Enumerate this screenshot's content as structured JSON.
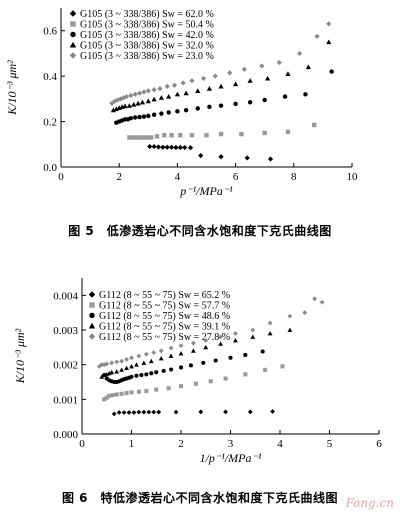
{
  "figures": [
    {
      "caption": "图 5　低渗透岩心不同含水饱和度下克氏曲线图",
      "chart_data": {
        "type": "scatter",
        "xlabel": "p⁻¹/MPa⁻¹",
        "ylabel": "K/10⁻³ μm²",
        "xlim": [
          0,
          10
        ],
        "ylim": [
          0,
          0.7
        ],
        "x_ticks": [
          "0",
          "2",
          "4",
          "6",
          "8",
          "10"
        ],
        "y_ticks": [
          "0.0",
          "0.2",
          "0.4",
          "0.6"
        ],
        "legend_position": "top-left",
        "series": [
          {
            "label": "G105 (3 ~ 338/386) Sw = 62.0 %",
            "marker": "diamond",
            "color": "#000000",
            "points": [
              [
                3.05,
                0.09
              ],
              [
                3.2,
                0.09
              ],
              [
                3.35,
                0.088
              ],
              [
                3.5,
                0.087
              ],
              [
                3.65,
                0.087
              ],
              [
                3.8,
                0.087
              ],
              [
                3.95,
                0.086
              ],
              [
                4.1,
                0.086
              ],
              [
                4.25,
                0.086
              ],
              [
                4.45,
                0.085
              ],
              [
                4.8,
                0.05
              ],
              [
                5.5,
                0.045
              ],
              [
                6.4,
                0.04
              ],
              [
                7.2,
                0.035
              ]
            ]
          },
          {
            "label": "G105 (3 ~ 338/386) Sw = 50.4 %",
            "marker": "square",
            "color": "#9a9a9a",
            "points": [
              [
                2.35,
                0.13
              ],
              [
                2.5,
                0.13
              ],
              [
                2.65,
                0.13
              ],
              [
                2.8,
                0.13
              ],
              [
                2.95,
                0.13
              ],
              [
                3.1,
                0.13
              ],
              [
                3.3,
                0.135
              ],
              [
                3.55,
                0.14
              ],
              [
                3.8,
                0.14
              ],
              [
                4.1,
                0.14
              ],
              [
                4.5,
                0.14
              ],
              [
                5.0,
                0.14
              ],
              [
                5.5,
                0.145
              ],
              [
                6.2,
                0.145
              ],
              [
                7.0,
                0.15
              ],
              [
                7.8,
                0.155
              ],
              [
                8.7,
                0.185
              ]
            ]
          },
          {
            "label": "G105 (3 ~ 338/386) Sw = 42.0 %",
            "marker": "circle",
            "color": "#000000",
            "points": [
              [
                1.9,
                0.195
              ],
              [
                2.0,
                0.2
              ],
              [
                2.1,
                0.205
              ],
              [
                2.2,
                0.21
              ],
              [
                2.3,
                0.21
              ],
              [
                2.4,
                0.215
              ],
              [
                2.55,
                0.218
              ],
              [
                2.7,
                0.22
              ],
              [
                2.85,
                0.222
              ],
              [
                3.0,
                0.225
              ],
              [
                3.2,
                0.23
              ],
              [
                3.45,
                0.235
              ],
              [
                3.7,
                0.24
              ],
              [
                4.0,
                0.245
              ],
              [
                4.3,
                0.25
              ],
              [
                4.7,
                0.258
              ],
              [
                5.1,
                0.265
              ],
              [
                5.5,
                0.27
              ],
              [
                6.0,
                0.278
              ],
              [
                6.5,
                0.285
              ],
              [
                7.0,
                0.295
              ],
              [
                7.7,
                0.31
              ],
              [
                8.4,
                0.32
              ],
              [
                9.3,
                0.42
              ]
            ]
          },
          {
            "label": "G105 (3 ~ 338/386) Sw = 32.0 %",
            "marker": "triangle",
            "color": "#000000",
            "points": [
              [
                1.8,
                0.25
              ],
              [
                1.9,
                0.255
              ],
              [
                2.0,
                0.26
              ],
              [
                2.1,
                0.265
              ],
              [
                2.2,
                0.268
              ],
              [
                2.35,
                0.27
              ],
              [
                2.5,
                0.275
              ],
              [
                2.65,
                0.28
              ],
              [
                2.8,
                0.285
              ],
              [
                3.0,
                0.29
              ],
              [
                3.2,
                0.298
              ],
              [
                3.45,
                0.305
              ],
              [
                3.7,
                0.31
              ],
              [
                4.0,
                0.32
              ],
              [
                4.3,
                0.325
              ],
              [
                4.7,
                0.335
              ],
              [
                5.1,
                0.345
              ],
              [
                5.5,
                0.355
              ],
              [
                6.0,
                0.365
              ],
              [
                6.5,
                0.38
              ],
              [
                7.1,
                0.39
              ],
              [
                7.8,
                0.41
              ],
              [
                8.5,
                0.44
              ],
              [
                9.2,
                0.55
              ]
            ]
          },
          {
            "label": "G105 (3 ~ 338/386) Sw = 23.0 %",
            "marker": "diamond",
            "color": "#8a8a8a",
            "points": [
              [
                1.75,
                0.28
              ],
              [
                1.85,
                0.29
              ],
              [
                1.95,
                0.295
              ],
              [
                2.05,
                0.3
              ],
              [
                2.15,
                0.305
              ],
              [
                2.25,
                0.31
              ],
              [
                2.4,
                0.315
              ],
              [
                2.55,
                0.32
              ],
              [
                2.7,
                0.325
              ],
              [
                2.85,
                0.33
              ],
              [
                3.0,
                0.335
              ],
              [
                3.2,
                0.34
              ],
              [
                3.4,
                0.345
              ],
              [
                3.65,
                0.355
              ],
              [
                3.9,
                0.36
              ],
              [
                4.2,
                0.37
              ],
              [
                4.5,
                0.38
              ],
              [
                4.9,
                0.39
              ],
              [
                5.3,
                0.4
              ],
              [
                5.8,
                0.415
              ],
              [
                6.3,
                0.43
              ],
              [
                6.9,
                0.445
              ],
              [
                7.5,
                0.46
              ],
              [
                8.2,
                0.5
              ],
              [
                8.8,
                0.575
              ],
              [
                9.2,
                0.63
              ]
            ]
          }
        ]
      }
    },
    {
      "caption": "图 6　特低渗透岩心不同含水饱和度下克氏曲线图",
      "chart_data": {
        "type": "scatter",
        "xlabel": "1/p⁻¹/MPa⁻¹",
        "ylabel": "K/10⁻³ μm²",
        "xlim": [
          0,
          6
        ],
        "ylim": [
          0,
          0.0045
        ],
        "x_ticks": [
          "0",
          "1",
          "2",
          "3",
          "4",
          "5",
          "6"
        ],
        "y_ticks": [
          "0.000",
          "0.001",
          "0.002",
          "0.003",
          "0.004"
        ],
        "legend_position": "top-left",
        "series": [
          {
            "label": "G112 (8 ~ 55 ~ 75) Sw = 65.2 %",
            "marker": "diamond",
            "color": "#000000",
            "points": [
              [
                0.65,
                0.00058
              ],
              [
                0.75,
                0.00062
              ],
              [
                0.85,
                0.00062
              ],
              [
                0.95,
                0.00062
              ],
              [
                1.05,
                0.00062
              ],
              [
                1.15,
                0.00063
              ],
              [
                1.25,
                0.00063
              ],
              [
                1.35,
                0.00063
              ],
              [
                1.45,
                0.00063
              ],
              [
                1.55,
                0.00063
              ],
              [
                1.9,
                0.00063
              ],
              [
                2.4,
                0.00064
              ],
              [
                2.9,
                0.00064
              ],
              [
                3.4,
                0.00064
              ],
              [
                3.85,
                0.00065
              ]
            ]
          },
          {
            "label": "G112 (8 ~ 55 ~ 75) Sw = 57.7 %",
            "marker": "square",
            "color": "#9a9a9a",
            "points": [
              [
                0.45,
                0.001
              ],
              [
                0.5,
                0.00105
              ],
              [
                0.55,
                0.0011
              ],
              [
                0.62,
                0.00112
              ],
              [
                0.7,
                0.00114
              ],
              [
                0.8,
                0.00116
              ],
              [
                0.9,
                0.00118
              ],
              [
                1.0,
                0.0012
              ],
              [
                1.15,
                0.00122
              ],
              [
                1.3,
                0.00124
              ],
              [
                1.5,
                0.00128
              ],
              [
                1.75,
                0.00132
              ],
              [
                2.0,
                0.00138
              ],
              [
                2.3,
                0.00145
              ],
              [
                2.6,
                0.00152
              ],
              [
                2.9,
                0.0016
              ],
              [
                3.3,
                0.00172
              ],
              [
                3.7,
                0.00185
              ],
              [
                4.05,
                0.00195
              ]
            ]
          },
          {
            "label": "G112 (8 ~ 55 ~ 75) Sw = 48.6 %",
            "marker": "circle",
            "color": "#000000",
            "points": [
              [
                0.45,
                0.0017
              ],
              [
                0.5,
                0.0016
              ],
              [
                0.55,
                0.00155
              ],
              [
                0.6,
                0.00152
              ],
              [
                0.65,
                0.0015
              ],
              [
                0.7,
                0.0015
              ],
              [
                0.75,
                0.00152
              ],
              [
                0.8,
                0.00155
              ],
              [
                0.85,
                0.00158
              ],
              [
                0.9,
                0.0016
              ],
              [
                0.95,
                0.00162
              ],
              [
                1.0,
                0.00165
              ],
              [
                1.1,
                0.00168
              ],
              [
                1.2,
                0.0017
              ],
              [
                1.3,
                0.00172
              ],
              [
                1.4,
                0.00175
              ],
              [
                1.5,
                0.00178
              ],
              [
                1.65,
                0.00182
              ],
              [
                1.8,
                0.00186
              ],
              [
                2.0,
                0.00192
              ],
              [
                2.2,
                0.00198
              ],
              [
                2.45,
                0.00205
              ],
              [
                2.7,
                0.00212
              ],
              [
                3.0,
                0.0022
              ],
              [
                3.3,
                0.00228
              ],
              [
                3.65,
                0.00238
              ]
            ]
          },
          {
            "label": "G112 (8 ~ 55 ~ 75) Sw = 39.1 %",
            "marker": "triangle",
            "color": "#000000",
            "points": [
              [
                0.4,
                0.00165
              ],
              [
                0.45,
                0.0017
              ],
              [
                0.5,
                0.00172
              ],
              [
                0.55,
                0.00175
              ],
              [
                0.6,
                0.00178
              ],
              [
                0.7,
                0.0018
              ],
              [
                0.8,
                0.00185
              ],
              [
                0.9,
                0.0019
              ],
              [
                1.0,
                0.00195
              ],
              [
                1.1,
                0.002
              ],
              [
                1.25,
                0.00205
              ],
              [
                1.4,
                0.0021
              ],
              [
                1.6,
                0.00218
              ],
              [
                1.8,
                0.00225
              ],
              [
                2.0,
                0.00232
              ],
              [
                2.25,
                0.0024
              ],
              [
                2.5,
                0.0025
              ],
              [
                2.8,
                0.0026
              ],
              [
                3.1,
                0.0027
              ],
              [
                3.45,
                0.0028
              ],
              [
                3.8,
                0.0029
              ],
              [
                4.2,
                0.003
              ]
            ]
          },
          {
            "label": "G112 (8 ~ 55 ~ 75) Sw = 27.8 %",
            "marker": "diamond",
            "color": "#8a8a8a",
            "points": [
              [
                0.35,
                0.00195
              ],
              [
                0.4,
                0.002
              ],
              [
                0.45,
                0.002
              ],
              [
                0.5,
                0.00202
              ],
              [
                0.6,
                0.00205
              ],
              [
                0.7,
                0.00208
              ],
              [
                0.8,
                0.0021
              ],
              [
                0.9,
                0.00215
              ],
              [
                1.0,
                0.0022
              ],
              [
                1.15,
                0.00225
              ],
              [
                1.3,
                0.0023
              ],
              [
                1.45,
                0.00235
              ],
              [
                1.6,
                0.0024
              ],
              [
                1.8,
                0.00248
              ],
              [
                2.0,
                0.00255
              ],
              [
                2.25,
                0.00262
              ],
              [
                2.5,
                0.0027
              ],
              [
                2.8,
                0.0028
              ],
              [
                3.1,
                0.0029
              ],
              [
                3.45,
                0.003
              ],
              [
                3.8,
                0.0032
              ],
              [
                4.2,
                0.0034
              ],
              [
                4.5,
                0.0035
              ],
              [
                4.7,
                0.0039
              ],
              [
                4.85,
                0.0038
              ]
            ]
          }
        ]
      }
    }
  ],
  "watermark": "Fang.cn"
}
